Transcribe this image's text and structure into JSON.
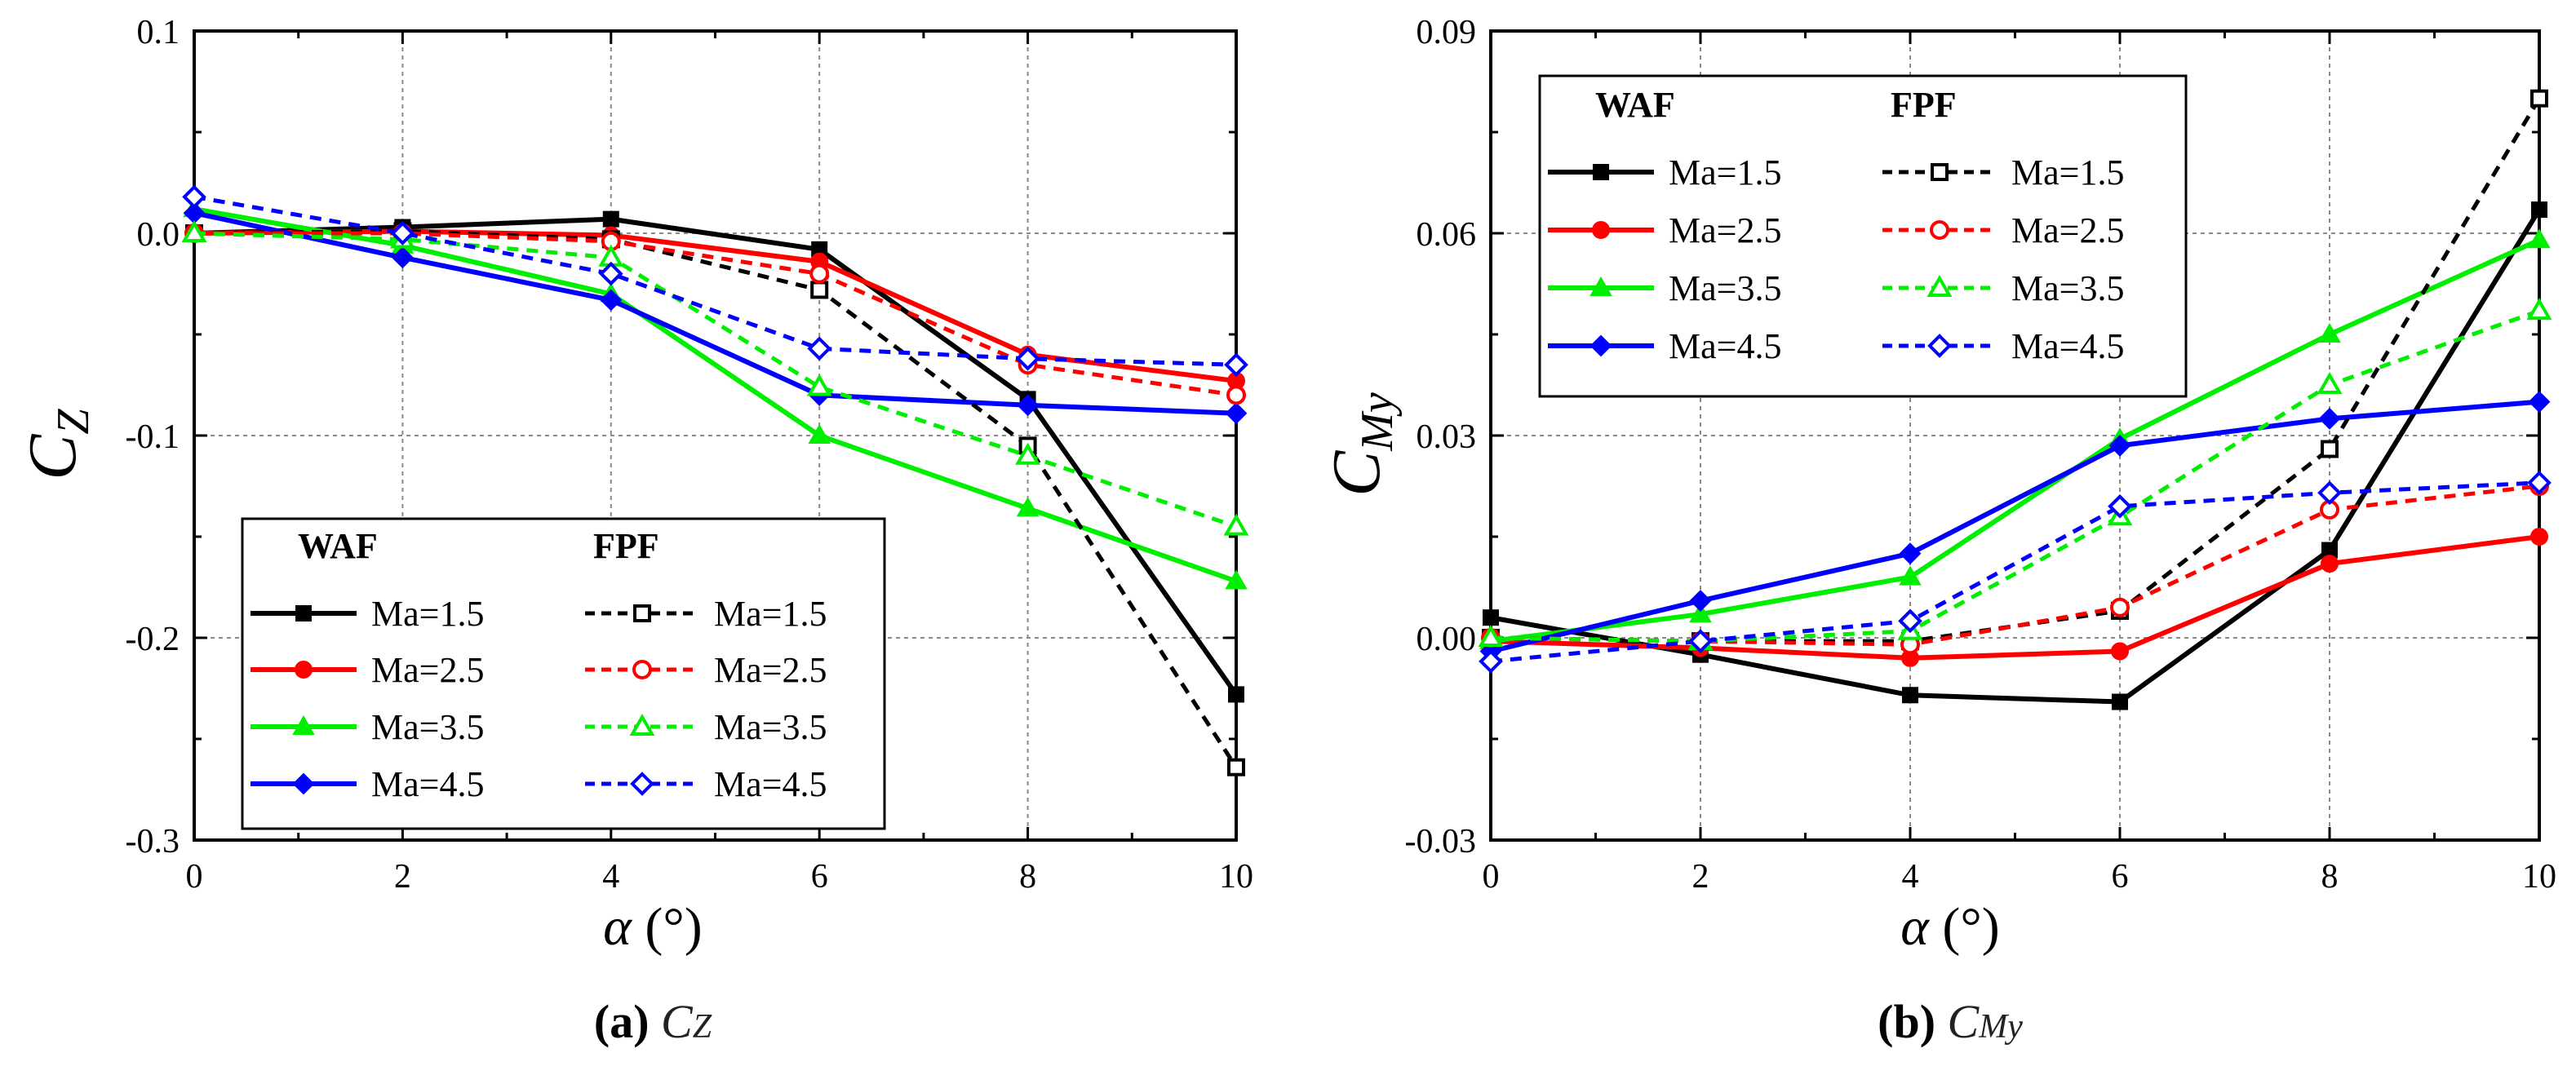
{
  "chart_data": [
    {
      "type": "line",
      "id": "cz",
      "ylabel": "C",
      "ylabel_sub": "Z",
      "xlabel_symbol": "α",
      "xlabel_unit": "(°)",
      "caption_letter": "(a)",
      "caption_symbol": "C",
      "caption_sub": "Z",
      "xlim": [
        0,
        10
      ],
      "ylim": [
        -0.3,
        0.1
      ],
      "xticks": [
        0,
        2,
        4,
        6,
        8,
        10
      ],
      "xtick_labels": [
        "0",
        "2",
        "4",
        "6",
        "8",
        "10"
      ],
      "yticks": [
        -0.3,
        -0.2,
        -0.1,
        0.0,
        0.1
      ],
      "ytick_labels": [
        "-0.3",
        "-0.2",
        "-0.1",
        "0.0",
        "0.1"
      ],
      "grid": true,
      "legend_placement": "bottom-left",
      "legend_headers": [
        "WAF",
        "FPF"
      ],
      "x": [
        0,
        2,
        4,
        6,
        8,
        10
      ],
      "series": [
        {
          "name": "Ma=1.5",
          "group": "WAF",
          "color": "#000000",
          "marker": "square",
          "values": [
            0.0,
            0.003,
            0.007,
            -0.008,
            -0.082,
            -0.228
          ]
        },
        {
          "name": "Ma=2.5",
          "group": "WAF",
          "color": "#ff0000",
          "marker": "circle",
          "values": [
            0.0,
            0.001,
            -0.001,
            -0.014,
            -0.06,
            -0.073
          ]
        },
        {
          "name": "Ma=3.5",
          "group": "WAF",
          "color": "#00ee00",
          "marker": "triangle",
          "values": [
            0.012,
            -0.006,
            -0.03,
            -0.1,
            -0.136,
            -0.172
          ]
        },
        {
          "name": "Ma=4.5",
          "group": "WAF",
          "color": "#0000ff",
          "marker": "diamond",
          "values": [
            0.01,
            -0.012,
            -0.033,
            -0.08,
            -0.085,
            -0.089
          ]
        },
        {
          "name": "Ma=1.5",
          "group": "FPF",
          "color": "#000000",
          "marker": "square",
          "values": [
            0.0,
            0.001,
            -0.003,
            -0.028,
            -0.105,
            -0.264
          ]
        },
        {
          "name": "Ma=2.5",
          "group": "FPF",
          "color": "#ff0000",
          "marker": "circle",
          "values": [
            0.0,
            0.0,
            -0.004,
            -0.02,
            -0.065,
            -0.08
          ]
        },
        {
          "name": "Ma=3.5",
          "group": "FPF",
          "color": "#00ee00",
          "marker": "triangle",
          "values": [
            0.0,
            -0.003,
            -0.012,
            -0.076,
            -0.11,
            -0.145
          ]
        },
        {
          "name": "Ma=4.5",
          "group": "FPF",
          "color": "#0000ff",
          "marker": "diamond",
          "values": [
            0.018,
            0.0,
            -0.02,
            -0.057,
            -0.062,
            -0.065
          ]
        }
      ]
    },
    {
      "type": "line",
      "id": "cmy",
      "ylabel": "C",
      "ylabel_sub": "My",
      "xlabel_symbol": "α",
      "xlabel_unit": "(°)",
      "caption_letter": "(b)",
      "caption_symbol": "C",
      "caption_sub": "My",
      "xlim": [
        0,
        10
      ],
      "ylim": [
        -0.03,
        0.09
      ],
      "xticks": [
        0,
        2,
        4,
        6,
        8,
        10
      ],
      "xtick_labels": [
        "0",
        "2",
        "4",
        "6",
        "8",
        "10"
      ],
      "yticks": [
        -0.03,
        0.0,
        0.03,
        0.06,
        0.09
      ],
      "ytick_labels": [
        "-0.03",
        "0.00",
        "0.03",
        "0.06",
        "0.09"
      ],
      "grid": true,
      "legend_placement": "top-left",
      "legend_headers": [
        "WAF",
        "FPF"
      ],
      "x": [
        0,
        2,
        4,
        6,
        8,
        10
      ],
      "series": [
        {
          "name": "Ma=1.5",
          "group": "WAF",
          "color": "#000000",
          "marker": "square",
          "values": [
            0.003,
            -0.0025,
            -0.0085,
            -0.0095,
            0.013,
            0.0635
          ]
        },
        {
          "name": "Ma=2.5",
          "group": "WAF",
          "color": "#ff0000",
          "marker": "circle",
          "values": [
            -0.0005,
            -0.0015,
            -0.003,
            -0.002,
            0.011,
            0.015
          ]
        },
        {
          "name": "Ma=3.5",
          "group": "WAF",
          "color": "#00ee00",
          "marker": "triangle",
          "values": [
            -0.0005,
            0.0035,
            0.009,
            0.0295,
            0.045,
            0.059
          ]
        },
        {
          "name": "Ma=4.5",
          "group": "WAF",
          "color": "#0000ff",
          "marker": "diamond",
          "values": [
            -0.002,
            0.0055,
            0.0125,
            0.0285,
            0.0325,
            0.035
          ]
        },
        {
          "name": "Ma=1.5",
          "group": "FPF",
          "color": "#000000",
          "marker": "square",
          "values": [
            0.0,
            -0.0005,
            -0.0005,
            0.004,
            0.028,
            0.08
          ]
        },
        {
          "name": "Ma=2.5",
          "group": "FPF",
          "color": "#ff0000",
          "marker": "circle",
          "values": [
            0.0,
            -0.0005,
            -0.001,
            0.0045,
            0.019,
            0.0225
          ]
        },
        {
          "name": "Ma=3.5",
          "group": "FPF",
          "color": "#00ee00",
          "marker": "triangle",
          "values": [
            0.0,
            -0.0005,
            0.001,
            0.018,
            0.0375,
            0.0485
          ]
        },
        {
          "name": "Ma=4.5",
          "group": "FPF",
          "color": "#0000ff",
          "marker": "diamond",
          "values": [
            -0.0035,
            -0.0005,
            0.0025,
            0.0195,
            0.0215,
            0.023
          ]
        }
      ]
    }
  ]
}
